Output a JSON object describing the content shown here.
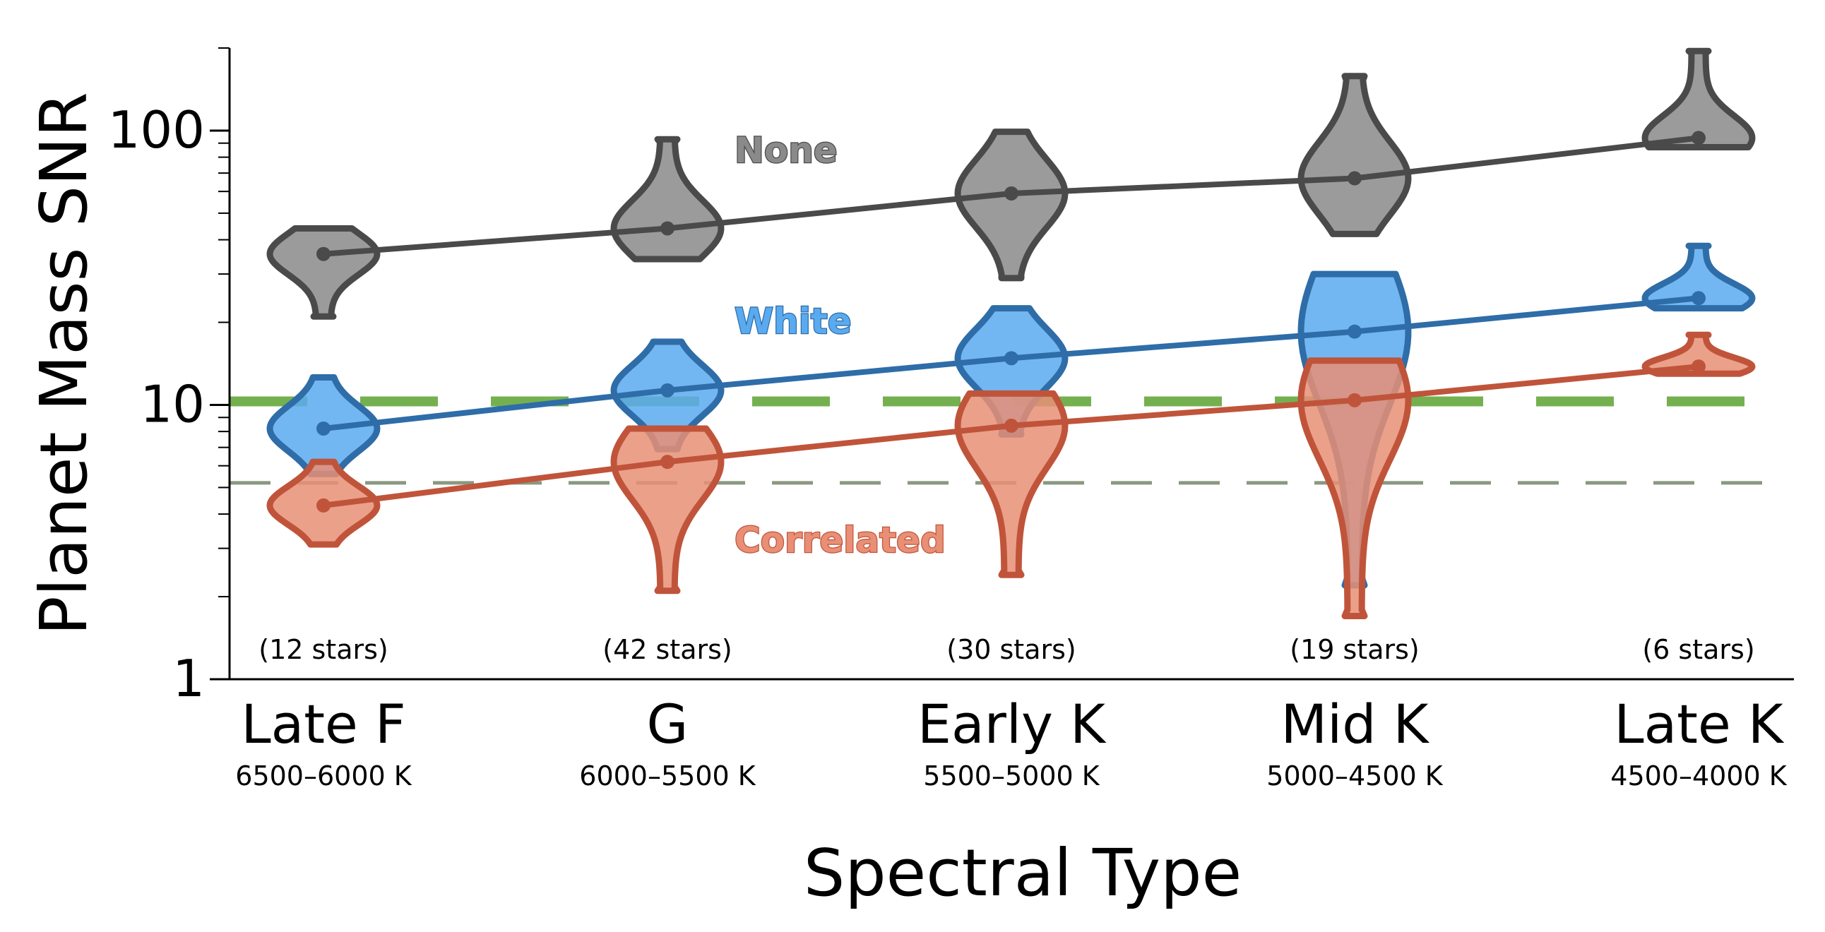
{
  "chart_data": {
    "type": "line",
    "ylabel": "Planet Mass SNR",
    "xlabel": "Spectral Type",
    "yscale": "log",
    "ylim": [
      1,
      200
    ],
    "yticks": [
      {
        "value": 1,
        "label": "1"
      },
      {
        "value": 10,
        "label": "10"
      },
      {
        "value": 100,
        "label": "100"
      }
    ],
    "categories": [
      {
        "label": "Late F",
        "sublabel": "6500–6000 K",
        "note": "(12 stars)"
      },
      {
        "label": "G",
        "sublabel": "6000–5500 K",
        "note": "(42 stars)"
      },
      {
        "label": "Early K",
        "sublabel": "5500–5000 K",
        "note": "(30 stars)"
      },
      {
        "label": "Mid K",
        "sublabel": "5000–4500 K",
        "note": "(19 stars)"
      },
      {
        "label": "Late K",
        "sublabel": "4500–4000 K",
        "note": "(6 stars)"
      }
    ],
    "series": [
      {
        "name": "None",
        "color": "#4a4a4a",
        "fill": "#8a8a8a",
        "median": [
          35.5,
          44,
          59,
          67,
          94
        ],
        "violin_range": [
          [
            21,
            44
          ],
          [
            34,
            93
          ],
          [
            29,
            99
          ],
          [
            42,
            158
          ],
          [
            87,
            195
          ]
        ]
      },
      {
        "name": "White",
        "color": "#2e6da8",
        "fill": "#5aaaf0",
        "median": [
          8.2,
          11.3,
          14.8,
          18.5,
          24.5
        ],
        "violin_range": [
          [
            5.6,
            12.6
          ],
          [
            6.9,
            17
          ],
          [
            7.8,
            22.5
          ],
          [
            2.2,
            30
          ],
          [
            22.5,
            38
          ]
        ]
      },
      {
        "name": "Correlated",
        "color": "#c0543a",
        "fill": "#e88f76",
        "median": [
          4.3,
          6.2,
          8.4,
          10.4,
          13.8
        ],
        "violin_range": [
          [
            3.1,
            6.2
          ],
          [
            2.1,
            8.2
          ],
          [
            2.4,
            11
          ],
          [
            1.7,
            14.5
          ],
          [
            13,
            18
          ]
        ]
      }
    ],
    "reference_lines": [
      {
        "value": 10.3,
        "color": "#74b050",
        "style": "dashed-thick"
      },
      {
        "value": 5.2,
        "color": "#8a9880",
        "style": "dashed-thin"
      }
    ]
  }
}
